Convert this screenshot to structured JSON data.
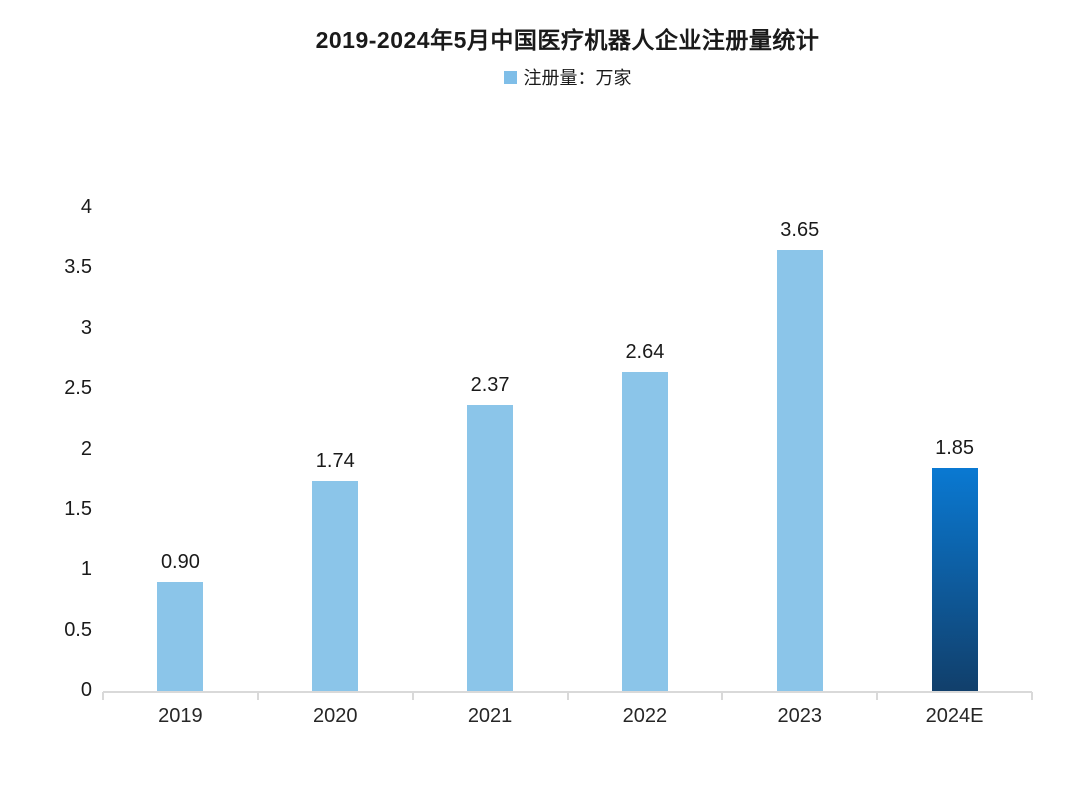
{
  "chart_data": {
    "type": "bar",
    "title": "2019-2024年5月中国医疗机器人企业注册量统计",
    "categories": [
      "2019",
      "2020",
      "2021",
      "2022",
      "2023",
      "2024E"
    ],
    "series": [
      {
        "name": "注册量：万家",
        "values": [
          0.9,
          1.74,
          2.37,
          2.64,
          3.65,
          1.85
        ],
        "value_labels": [
          "0.90",
          "1.74",
          "2.37",
          "2.64",
          "3.65",
          "1.85"
        ]
      }
    ],
    "xlabel": "",
    "ylabel": "",
    "ylim": [
      0,
      4
    ],
    "ytick_step": 0.5,
    "yticks": [
      "0",
      "0.5",
      "1",
      "1.5",
      "2",
      "2.5",
      "3",
      "3.5",
      "4"
    ],
    "grid": false,
    "legend_position": "top",
    "highlight_index": 5,
    "highlight_category": "2024E",
    "colors": {
      "bar": "#8BC5E9",
      "legend_swatch": "#7FBEE8",
      "highlight_gradient_top": "#0A79D2",
      "highlight_gradient_bottom": "#113F6B",
      "axis": "#D9D9D9",
      "text": "#1A1A1A"
    }
  }
}
